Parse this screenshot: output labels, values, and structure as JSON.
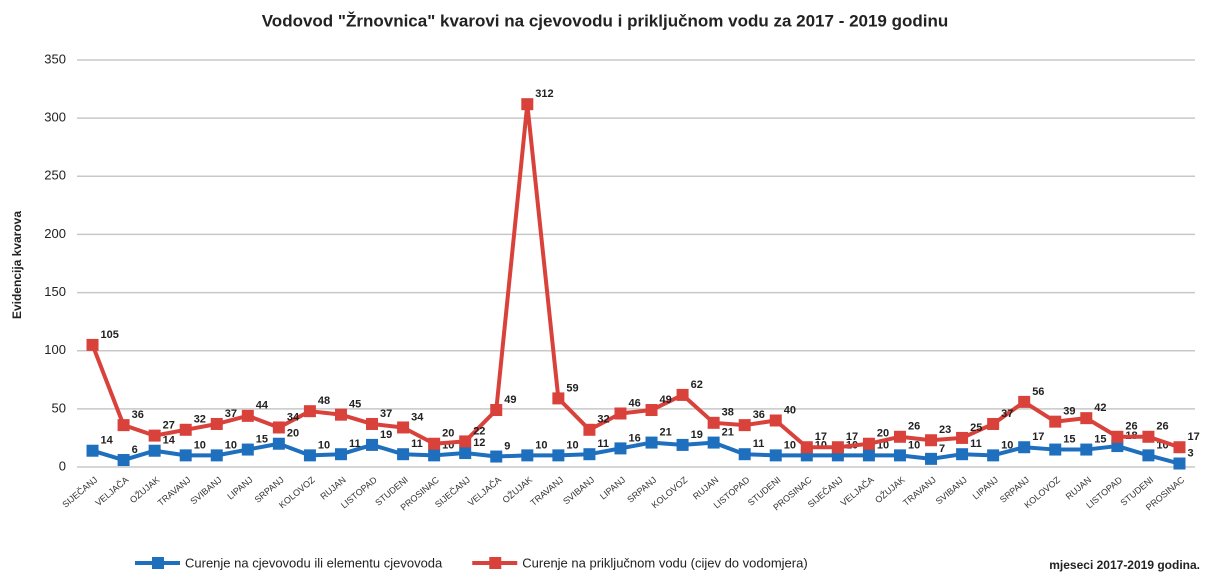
{
  "chart_data": {
    "type": "line",
    "title": "Vodovod \"Žrnovnica\" kvarovi na cjevovodu i priključnom vodu za 2017 - 2019 godinu",
    "y_label": "Evidencija kvarova",
    "x_label": "mjeseci 2017-2019 godina.",
    "categories": [
      "SIJEČANJ",
      "VELJAČA",
      "OŽUJAK",
      "TRAVANJ",
      "SVIBANJ",
      "LIPANJ",
      "SRPANJ",
      "KOLOVOZ",
      "RUJAN",
      "LISTOPAD",
      "STUDENI",
      "PROSINAC",
      "SIJEČANJ",
      "VELJAČA",
      "OŽUJAK",
      "TRAVANJ",
      "SVIBANJ",
      "LIPANJ",
      "SRPANJ",
      "KOLOVOZ",
      "RUJAN",
      "LISTOPAD",
      "STUDENI",
      "PROSINAC",
      "SIJEČANJ",
      "VELJAČA",
      "OŽUJAK",
      "TRAVANJ",
      "SVIBANJ",
      "LIPANJ",
      "SRPANJ",
      "KOLOVOZ",
      "RUJAN",
      "LISTOPAD",
      "STUDENI",
      "PROSINAC"
    ],
    "series": [
      {
        "name": "Curenje na cjevovodu ili elementu cjevovoda",
        "color": "#1f6fbf",
        "values": [
          14,
          6,
          14,
          10,
          10,
          15,
          20,
          10,
          11,
          19,
          11,
          10,
          12,
          9,
          10,
          10,
          11,
          16,
          21,
          19,
          21,
          11,
          10,
          10,
          10,
          10,
          10,
          7,
          11,
          10,
          17,
          15,
          15,
          18,
          10,
          3
        ]
      },
      {
        "name": "Curenje na priključnom vodu (cijev do vodomjera)",
        "color": "#d9413b",
        "values": [
          105,
          36,
          27,
          32,
          37,
          44,
          34,
          48,
          45,
          37,
          34,
          20,
          22,
          49,
          312,
          59,
          32,
          46,
          49,
          62,
          38,
          36,
          40,
          17,
          17,
          20,
          26,
          23,
          25,
          37,
          56,
          39,
          42,
          26,
          26,
          17
        ]
      }
    ],
    "ylim": [
      0,
      350
    ],
    "yticks": [
      0,
      50,
      100,
      150,
      200,
      250,
      300,
      350
    ],
    "grid": true,
    "data_labels": true,
    "legend": "bottom"
  }
}
